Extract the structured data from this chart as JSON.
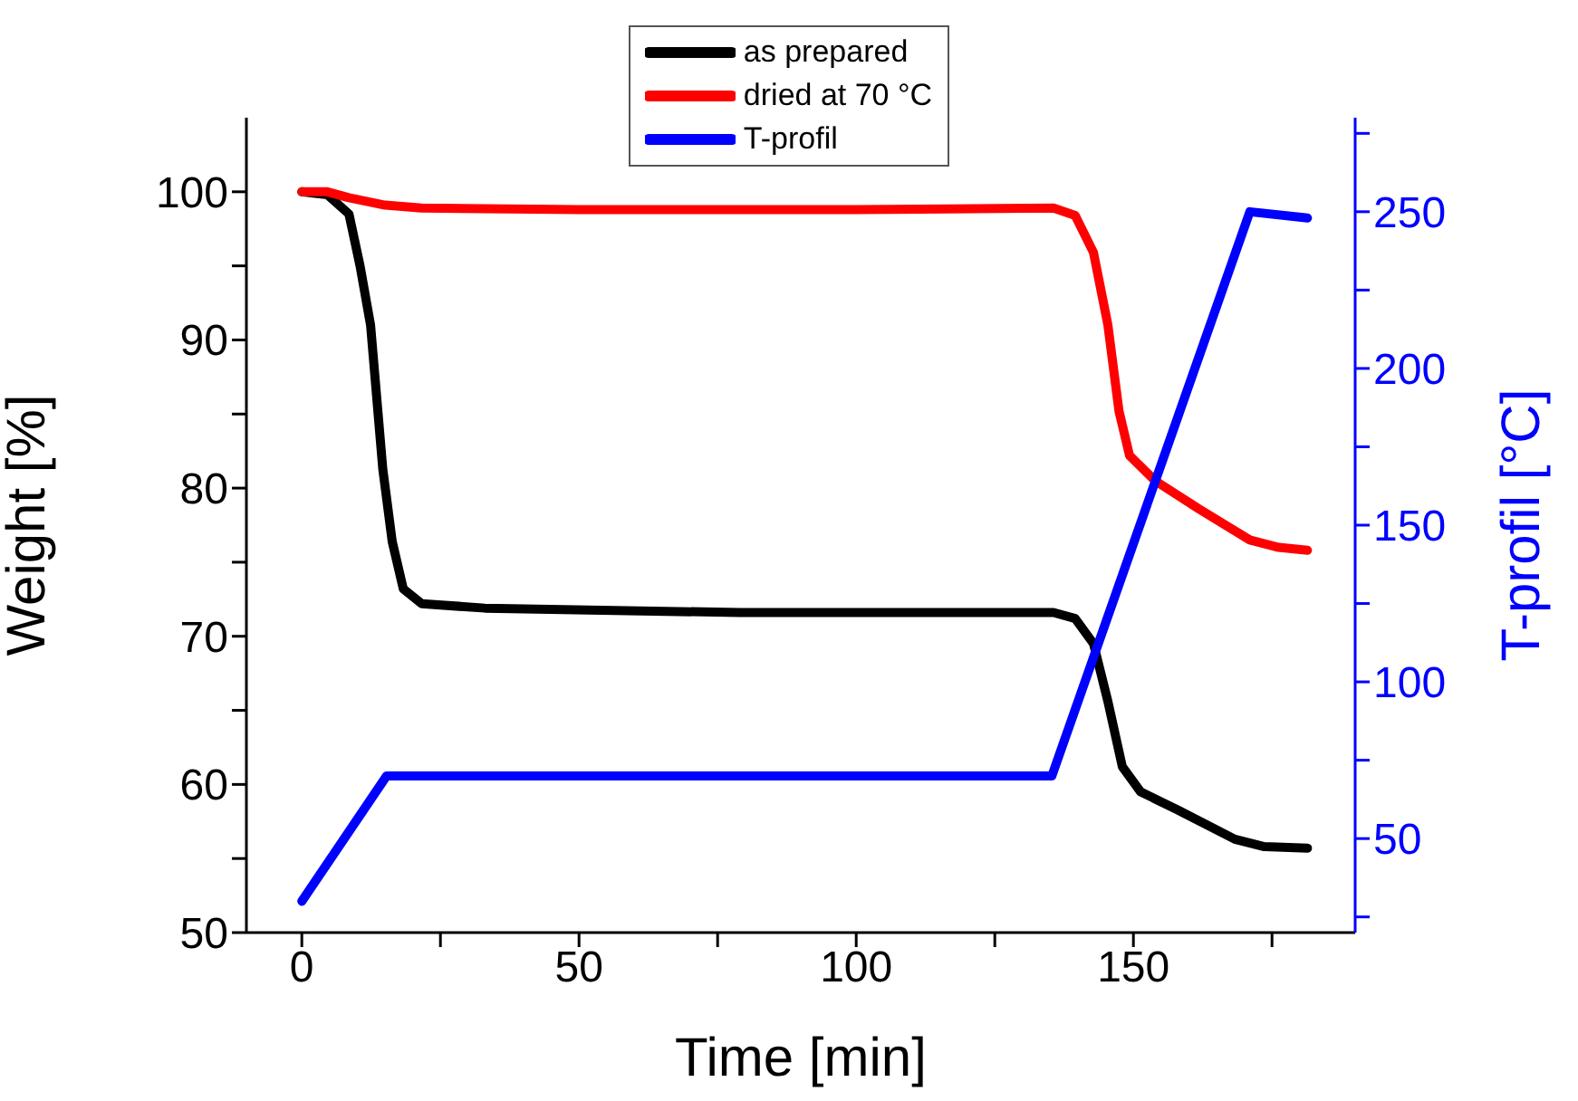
{
  "chart_data": {
    "type": "line",
    "xlabel": "Time [min]",
    "ylabel": "Weight [%]",
    "y2label": "T-profil [°C]",
    "legend": "top",
    "marker": "none",
    "line_style": "solid",
    "xlim": [
      -10,
      190
    ],
    "xticks": [
      0,
      {
        "value": 25,
        "label": null
      },
      50,
      {
        "value": 75,
        "label": null
      },
      100,
      {
        "value": 125,
        "label": null
      },
      150,
      {
        "value": 175,
        "label": null
      }
    ],
    "ylim": [
      50,
      105
    ],
    "yticks": [
      50,
      {
        "value": 55,
        "label": null
      },
      60,
      {
        "value": 65,
        "label": null
      },
      70,
      {
        "value": 75,
        "label": null
      },
      80,
      {
        "value": 85,
        "label": null
      },
      90,
      {
        "value": 95,
        "label": null
      },
      100
    ],
    "y2lim": [
      20,
      280
    ],
    "y2ticks": [
      {
        "value": 25,
        "label": null
      },
      50,
      {
        "value": 75,
        "label": null
      },
      100,
      {
        "value": 125,
        "label": null
      },
      150,
      {
        "value": 175,
        "label": null
      },
      200,
      {
        "value": 225,
        "label": null
      },
      250,
      {
        "value": 275,
        "label": null
      }
    ],
    "series": [
      {
        "name": "as prepared",
        "color": "#000000",
        "x": [
          0,
          4.6,
          8.5,
          10.5,
          12.4,
          14.6,
          16.3,
          18.3,
          21.6,
          33,
          79,
          135.6,
          139.5,
          142.8,
          145.4,
          148,
          151.3,
          157.9,
          168.3,
          173.6,
          181.4
        ],
        "values": [
          100,
          99.8,
          98.5,
          95,
          91,
          81.3,
          76.4,
          73.2,
          72.2,
          71.9,
          71.6,
          71.6,
          71.2,
          69.5,
          65.6,
          61.2,
          59.5,
          58.3,
          56.3,
          55.8,
          55.7
        ]
      },
      {
        "name": "dried at 70 °C",
        "color": "#ff0000",
        "x": [
          0,
          4.6,
          8.5,
          15,
          21.6,
          50,
          100,
          135.6,
          139.5,
          142.8,
          145.4,
          147.4,
          149.3,
          153.9,
          161.8,
          171,
          176.2,
          181.4
        ],
        "values": [
          100,
          100,
          99.6,
          99.1,
          98.9,
          98.8,
          98.8,
          98.9,
          98.4,
          95.9,
          91,
          85.2,
          82.2,
          80.5,
          78.6,
          76.5,
          76,
          75.8
        ]
      },
      {
        "name": "T-profil",
        "color": "#0000ff",
        "axis": "y2",
        "x": [
          0,
          15.3,
          135.3,
          171,
          181.4
        ],
        "values": [
          30,
          70,
          70,
          250,
          248
        ]
      }
    ]
  }
}
